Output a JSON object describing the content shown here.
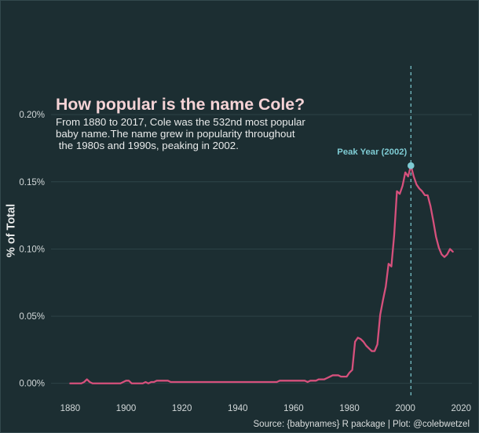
{
  "chart_data": {
    "type": "line",
    "title": "How popular is the name Cole?",
    "subtitle": [
      "From 1880 to 2017, Cole was the 532nd most popular",
      "baby name.The name grew in popularity throughout",
      " the 1980s and 1990s, peaking in 2002."
    ],
    "xlabel": "",
    "ylabel": "% of Total",
    "caption": "Source: {babynames} R package | Plot: @colebwetzel",
    "x": [
      1880,
      1881,
      1882,
      1883,
      1884,
      1885,
      1886,
      1887,
      1888,
      1889,
      1890,
      1891,
      1892,
      1893,
      1894,
      1895,
      1896,
      1897,
      1898,
      1899,
      1900,
      1901,
      1902,
      1903,
      1904,
      1905,
      1906,
      1907,
      1908,
      1909,
      1910,
      1911,
      1912,
      1913,
      1914,
      1915,
      1916,
      1917,
      1918,
      1919,
      1920,
      1921,
      1922,
      1923,
      1924,
      1925,
      1926,
      1927,
      1928,
      1929,
      1930,
      1931,
      1932,
      1933,
      1934,
      1935,
      1936,
      1937,
      1938,
      1939,
      1940,
      1941,
      1942,
      1943,
      1944,
      1945,
      1946,
      1947,
      1948,
      1949,
      1950,
      1951,
      1952,
      1953,
      1954,
      1955,
      1956,
      1957,
      1958,
      1959,
      1960,
      1961,
      1962,
      1963,
      1964,
      1965,
      1966,
      1967,
      1968,
      1969,
      1970,
      1971,
      1972,
      1973,
      1974,
      1975,
      1976,
      1977,
      1978,
      1979,
      1980,
      1981,
      1982,
      1983,
      1984,
      1985,
      1986,
      1987,
      1988,
      1989,
      1990,
      1991,
      1992,
      1993,
      1994,
      1995,
      1996,
      1997,
      1998,
      1999,
      2000,
      2001,
      2002,
      2003,
      2004,
      2005,
      2006,
      2007,
      2008,
      2009,
      2010,
      2011,
      2012,
      2013,
      2014,
      2015,
      2016,
      2017
    ],
    "series": [
      {
        "values": [
          0,
          0,
          0,
          0,
          0,
          0.001,
          0.003,
          0.001,
          0,
          0,
          0,
          0,
          0,
          0,
          0,
          0,
          0,
          0,
          0,
          0.001,
          0.002,
          0.002,
          0,
          0,
          0,
          0,
          0,
          0.001,
          0,
          0.001,
          0.001,
          0.002,
          0.002,
          0.002,
          0.002,
          0.002,
          0.001,
          0.001,
          0.001,
          0.001,
          0.001,
          0.001,
          0.001,
          0.001,
          0.001,
          0.001,
          0.001,
          0.001,
          0.001,
          0.001,
          0.001,
          0.001,
          0.001,
          0.001,
          0.001,
          0.001,
          0.001,
          0.001,
          0.001,
          0.001,
          0.001,
          0.001,
          0.001,
          0.001,
          0.001,
          0.001,
          0.001,
          0.001,
          0.001,
          0.001,
          0.001,
          0.001,
          0.001,
          0.001,
          0.001,
          0.002,
          0.002,
          0.002,
          0.002,
          0.002,
          0.002,
          0.002,
          0.002,
          0.002,
          0.002,
          0.001,
          0.002,
          0.002,
          0.002,
          0.003,
          0.003,
          0.003,
          0.004,
          0.005,
          0.006,
          0.006,
          0.006,
          0.005,
          0.005,
          0.005,
          0.008,
          0.01,
          0.031,
          0.034,
          0.033,
          0.031,
          0.028,
          0.026,
          0.024,
          0.024,
          0.029,
          0.051,
          0.062,
          0.072,
          0.089,
          0.087,
          0.11,
          0.143,
          0.141,
          0.147,
          0.157,
          0.154,
          0.162,
          0.154,
          0.148,
          0.145,
          0.143,
          0.14,
          0.14,
          0.132,
          0.121,
          0.109,
          0.101,
          0.096,
          0.094,
          0.096,
          0.1,
          0.098
        ]
      }
    ],
    "xticks": [
      1880,
      1900,
      1920,
      1940,
      1960,
      1980,
      2000,
      2020
    ],
    "xtick_labels": [
      "1880",
      "1900",
      "1920",
      "1940",
      "1960",
      "1980",
      "2000",
      "2020"
    ],
    "yticks": [
      0,
      0.05,
      0.1,
      0.15,
      0.2
    ],
    "ytick_labels": [
      "0.00%",
      "0.05%",
      "0.10%",
      "0.15%",
      "0.20%"
    ],
    "xlim": [
      1873.15,
      2023.85
    ],
    "ylim": [
      -0.01125,
      0.23625
    ],
    "grid": {
      "x": false,
      "y": true
    },
    "legend": "none",
    "peak": {
      "x": 2002,
      "y": 0.162,
      "label": "Peak Year (2002)"
    },
    "colors": {
      "background": "#1c2e32",
      "line": "#d6507c",
      "peak": "#7ecbd3",
      "title": "#f5d3d6"
    }
  }
}
